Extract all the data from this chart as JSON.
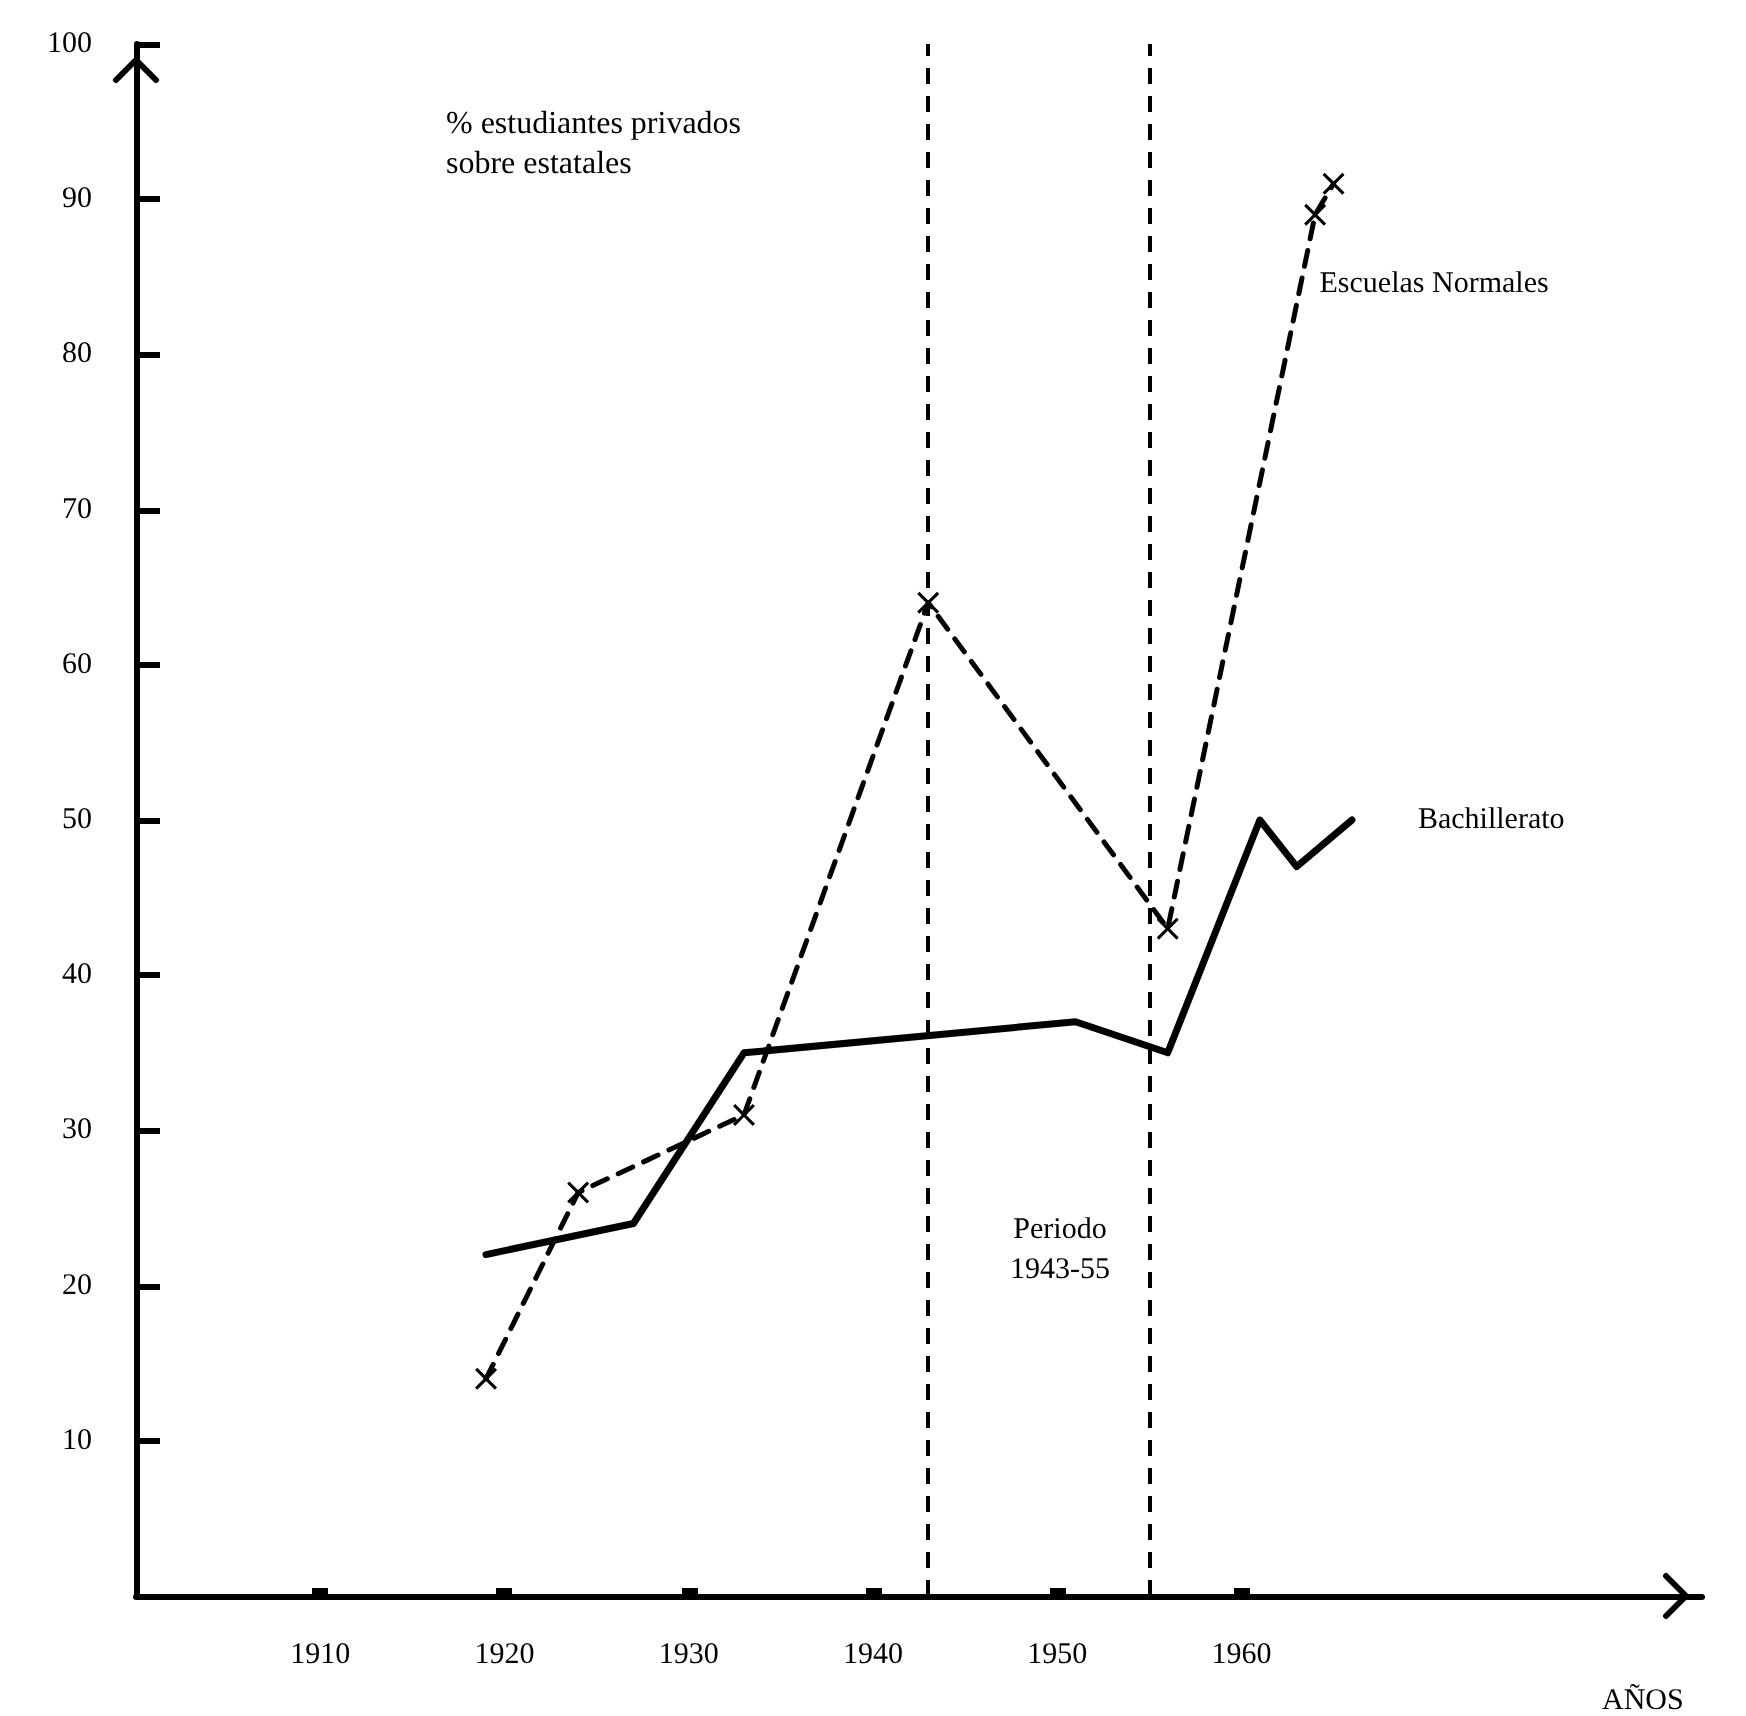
{
  "chart_data": {
    "type": "line",
    "ylabel": "% estudiantes privados\nsobre estatales",
    "xlabel": "AÑOS",
    "xlim": [
      1900,
      1985
    ],
    "xticks": [
      1910,
      1920,
      1930,
      1940,
      1950,
      1960
    ],
    "ylim": [
      0,
      100
    ],
    "yticks": [
      10,
      20,
      30,
      40,
      50,
      60,
      70,
      80,
      90,
      100
    ],
    "grid": false,
    "legend": false,
    "series": [
      {
        "name": "Escuelas Normales",
        "color": "#000000",
        "line_style": "dashed",
        "marker": "cross",
        "x": [
          1919,
          1924,
          1933,
          1943,
          1956,
          1964,
          1965
        ],
        "values": [
          14,
          26,
          31,
          64,
          43,
          89,
          91
        ]
      },
      {
        "name": "Bachillerato",
        "color": "#000000",
        "line_style": "solid",
        "marker": "none",
        "x": [
          1919,
          1927,
          1933,
          1951,
          1956,
          1961,
          1963,
          1966
        ],
        "values": [
          22,
          24,
          35,
          37,
          35,
          50,
          47,
          50
        ]
      }
    ],
    "ref_lines": [
      {
        "axis": "x",
        "value": 1943,
        "line_style": "dashed"
      },
      {
        "axis": "x",
        "value": 1955,
        "line_style": "dashed"
      }
    ],
    "annotations": [
      "Periodo\n1943-55"
    ]
  }
}
